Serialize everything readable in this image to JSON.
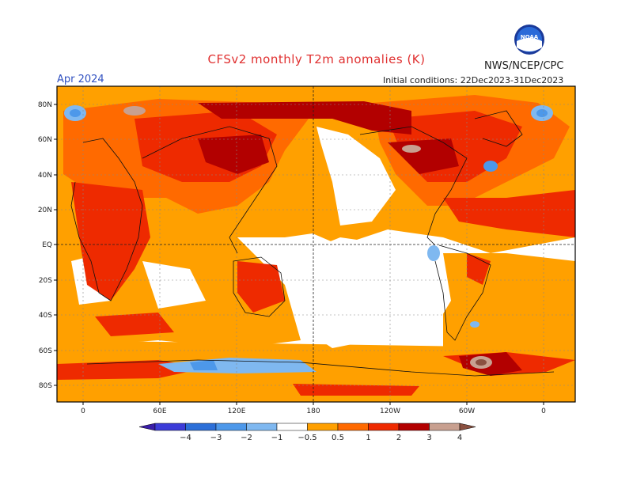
{
  "title": "CFSv2 monthly T2m anomalies (K)",
  "valid_month": "Apr 2024",
  "agency": "NWS/NCEP/CPC",
  "initial_conditions": "Initial conditions: 22Dec2023-31Dec2023",
  "logo_text": "NOAA",
  "lat_labels": [
    "80N",
    "60N",
    "40N",
    "20N",
    "EQ",
    "20S",
    "40S",
    "60S",
    "80S"
  ],
  "lon_labels": [
    "0",
    "60E",
    "120E",
    "180",
    "120W",
    "60W",
    "0"
  ],
  "legend": {
    "colors": [
      "#3a1ea8",
      "#3c3cd8",
      "#2c6fd8",
      "#4d98ea",
      "#7fb8f0",
      "#ffffff",
      "#ffa000",
      "#ff6a00",
      "#ee2a00",
      "#b20000",
      "#c8a090",
      "#8a5040"
    ],
    "labels": [
      "−4",
      "−3",
      "−2",
      "−1",
      "−0.5",
      "0.5",
      "1",
      "2",
      "3",
      "4"
    ]
  },
  "colors": {
    "title": "#e03030",
    "month": "#3050c0",
    "orange": "#ffa000",
    "dark_orange": "#ff6a00",
    "red": "#ee2a00",
    "dark_red": "#b20000",
    "light_blue": "#7fb8f0",
    "blue": "#4d98ea"
  }
}
